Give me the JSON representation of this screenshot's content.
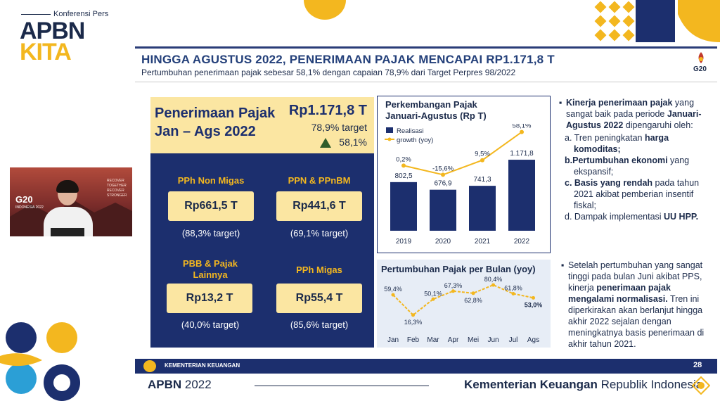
{
  "brand": {
    "small": "Konferensi Pers",
    "apbn": "APBN",
    "kita": "KITA"
  },
  "header": {
    "title": "HINGGA AGUSTUS 2022, PENERIMAAN PAJAK MENCAPAI RP1.171,8 T",
    "subtitle": "Pertumbuhan penerimaan pajak sebesar 58,1% dengan capaian 78,9% dari Target Perpres 98/2022",
    "logo_text": "G20"
  },
  "summary": {
    "title": "Penerimaan Pajak Jan – Ags 2022",
    "value": "Rp1.171,8 T",
    "target": "78,9% target",
    "growth": "58,1%"
  },
  "components": [
    {
      "label": "PPh Non Migas",
      "value": "Rp661,5 T",
      "target": "(88,3% target)"
    },
    {
      "label": "PPN & PPnBM",
      "value": "Rp441,6 T",
      "target": "(69,1% target)"
    },
    {
      "label": "PBB & Pajak Lainnya",
      "value": "Rp13,2 T",
      "target": "(40,0% target)"
    },
    {
      "label": "PPh Migas",
      "value": "Rp55,4 T",
      "target": "(85,6% target)"
    }
  ],
  "chart_data": [
    {
      "type": "bar",
      "title": "Perkembangan Pajak Januari-Agustus (Rp T)",
      "categories": [
        "2019",
        "2020",
        "2021",
        "2022"
      ],
      "series": [
        {
          "name": "Realisasi",
          "type": "bar",
          "values": [
            802.5,
            676.9,
            741.3,
            1171.8
          ],
          "labels": [
            "802,5",
            "676,9",
            "741,3",
            "1.171,8"
          ]
        },
        {
          "name": "growth (yoy)",
          "type": "line",
          "values": [
            0.2,
            -15.6,
            9.5,
            58.1
          ],
          "labels": [
            "0,2%",
            "-15,6%",
            "9,5%",
            "58,1%"
          ]
        }
      ],
      "legend": "top-left",
      "colors": {
        "bar": "#1c2f6e",
        "line": "#f3b71f"
      }
    },
    {
      "type": "line",
      "title": "Pertumbuhan Pajak per Bulan (yoy)",
      "categories": [
        "Jan",
        "Feb",
        "Mar",
        "Apr",
        "Mei",
        "Jun",
        "Jul",
        "Ags"
      ],
      "series": [
        {
          "values": [
            59.4,
            16.3,
            50.1,
            67.3,
            62.8,
            80.4,
            61.8,
            53.0
          ],
          "labels": [
            "59,4%",
            "16,3%",
            "50,1%",
            "67,3%",
            "62,8%",
            "80,4%",
            "61,8%",
            "53,0%"
          ]
        }
      ],
      "colors": {
        "line": "#f3b71f"
      }
    }
  ],
  "notes": {
    "p1_a": "Kinerja penerimaan pajak",
    "p1_b": " yang sangat baik pada periode ",
    "p1_c": "Januari-Agustus 2022",
    "p1_d": " dipengaruhi oleh:",
    "a_pre": "a. Tren peningkatan ",
    "a_bold": "harga komoditas;",
    "b_bold": "b.Pertumbuhan ekonomi",
    "b_post": " yang ekspansif;",
    "c_bold": "c. Basis yang rendah",
    "c_post": " pada tahun 2021 akibat pemberian insentif fiskal;",
    "d_pre": "d. Dampak implementasi ",
    "d_bold": "UU HPP.",
    "p2_a": "Setelah pertumbuhan yang sangat tinggi pada bulan Juni akibat PPS, kinerja ",
    "p2_b": "penerimaan pajak mengalami normalisasi.",
    "p2_c": " Tren ini diperkirakan akan berlanjut hingga akhir 2022 sejalan dengan meningkatnya basis penerimaan di akhir tahun 2021."
  },
  "footer": {
    "ministry_small": "KEMENTERIAN KEUANGAN",
    "page": "28",
    "apbn_bold": "APBN",
    "apbn_year": " 2022",
    "kemen_bold": "Kementerian Keuangan",
    "kemen_rest": " Republik Indonesia"
  },
  "video": {
    "logo": "G20",
    "logo_sub": "INDONESIA 2022",
    "tagline": "RECOVER TOGETHER RECOVER STRONGER"
  },
  "colors": {
    "navy": "#1c2f6e",
    "gold": "#f3b71f",
    "cream": "#fbe6a2"
  }
}
